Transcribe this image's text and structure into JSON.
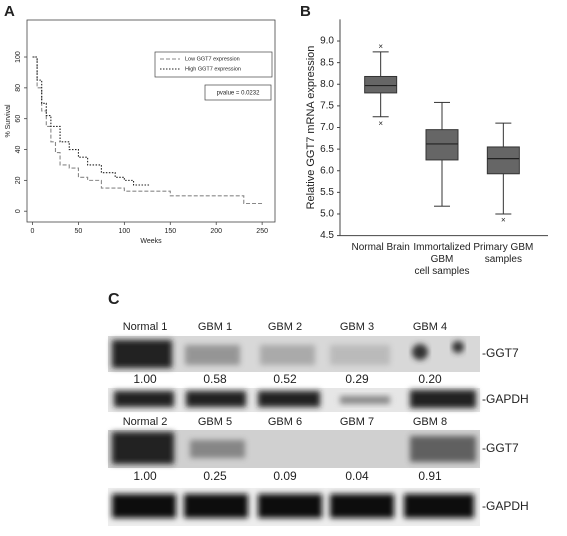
{
  "chart_data": [
    {
      "type": "survival",
      "panel": "A",
      "xlabel": "Weeks",
      "ylabel": "% Survival",
      "xlim": [
        -6,
        264
      ],
      "ylim": [
        -7,
        124
      ],
      "xticks": [
        0,
        50,
        100,
        150,
        200,
        250
      ],
      "yticks": [
        0,
        20,
        40,
        60,
        80,
        100
      ],
      "annotation": "pvalue = 0.0232",
      "series": [
        {
          "name": "Low GGT7 expression",
          "color": "#888888",
          "dash": "4 2",
          "x": [
            0,
            5,
            10,
            15,
            20,
            25,
            30,
            40,
            50,
            60,
            75,
            100,
            150,
            230,
            250
          ],
          "values": [
            100,
            80,
            65,
            55,
            45,
            38,
            30,
            28,
            22,
            20,
            15,
            13,
            10,
            5,
            5
          ]
        },
        {
          "name": "High GGT7 expression",
          "color": "#222222",
          "dash": "1.5 1.5",
          "x": [
            0,
            5,
            10,
            15,
            20,
            30,
            40,
            50,
            60,
            75,
            90,
            100,
            110,
            128
          ],
          "values": [
            100,
            85,
            70,
            62,
            55,
            45,
            40,
            35,
            30,
            25,
            22,
            20,
            17,
            17
          ]
        }
      ]
    },
    {
      "type": "box",
      "panel": "B",
      "ylabel": "Relative GGT7 mRNA expression",
      "ylim": [
        4.5,
        9.5
      ],
      "yticks": [
        4.5,
        {
          "value": 5,
          "label": "5.0"
        },
        5.5,
        {
          "value": 6,
          "label": "6.0"
        },
        6.5,
        {
          "value": 7,
          "label": "7.0"
        },
        7.5,
        {
          "value": 8,
          "label": "8.0"
        },
        8.5,
        {
          "value": 9,
          "label": "9.0"
        }
      ],
      "categories": [
        "Normal Brain",
        "Immortalized\nGBM\ncell samples",
        "Primary GBM\nsamples"
      ],
      "color": "#666666",
      "boxes": [
        {
          "whisker_low": 7.25,
          "q1": 7.8,
          "median": 7.97,
          "q3": 8.18,
          "whisker_high": 8.75,
          "outliers": [
            8.87,
            7.08
          ]
        },
        {
          "whisker_low": 5.18,
          "q1": 6.25,
          "median": 6.62,
          "q3": 6.95,
          "whisker_high": 7.58,
          "outliers": []
        },
        {
          "whisker_low": 5.0,
          "q1": 5.93,
          "median": 6.28,
          "q3": 6.55,
          "whisker_high": 7.1,
          "outliers": [
            4.85
          ]
        }
      ]
    }
  ],
  "panel_c": {
    "panel": "C",
    "rows": [
      {
        "lanes": [
          "Normal 1",
          "GBM 1",
          "GBM 2",
          "GBM 3",
          "GBM 4"
        ],
        "ratios": [
          "1.00",
          "0.58",
          "0.52",
          "0.29",
          "0.20"
        ],
        "target": "-GGT7",
        "control": "-GAPDH"
      },
      {
        "lanes": [
          "Normal 2",
          "GBM 5",
          "GBM 6",
          "GBM 7",
          "GBM 8"
        ],
        "ratios": [
          "1.00",
          "0.25",
          "0.09",
          "0.04",
          "0.91"
        ],
        "target": "-GGT7",
        "control": "-GAPDH"
      }
    ]
  }
}
